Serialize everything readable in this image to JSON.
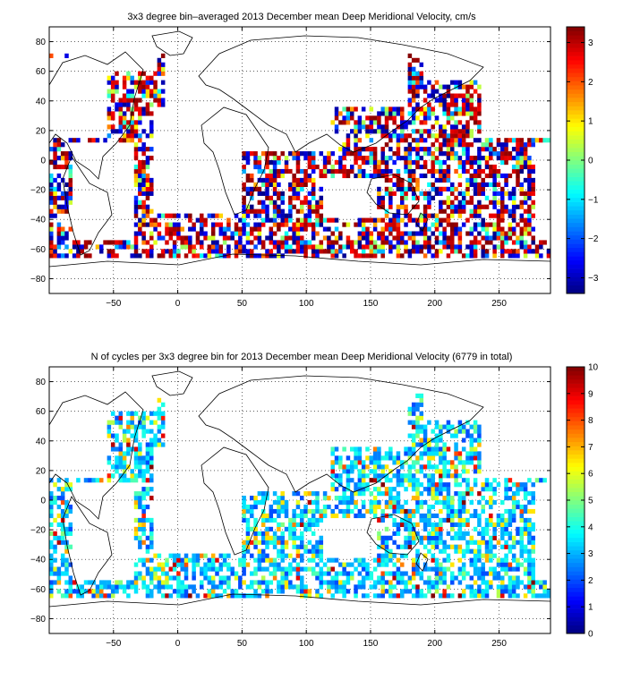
{
  "chart_data": [
    {
      "type": "heatmap",
      "title": "3x3 degree bin–averaged 2013 December mean Deep Meridional Velocity, cm/s",
      "xlabel": "",
      "ylabel": "",
      "xlim": [
        -100,
        290
      ],
      "ylim": [
        -90,
        90
      ],
      "xticks": [
        -50,
        0,
        50,
        100,
        150,
        200,
        250
      ],
      "yticks": [
        -80,
        -60,
        -40,
        -20,
        0,
        20,
        40,
        60,
        80
      ],
      "grid": true,
      "bin_size_deg": 3,
      "colorbar": {
        "range": [
          -3.4,
          3.4
        ],
        "ticks": [
          -3,
          -2,
          -1,
          0,
          1,
          2,
          3
        ],
        "colormap": "jet"
      },
      "seed": 11
    },
    {
      "type": "heatmap",
      "title": "N of cycles per 3x3 degree bin for 2013 December mean Deep Meridional Velocity (6779 in total)",
      "xlabel": "",
      "ylabel": "",
      "xlim": [
        -100,
        290
      ],
      "ylim": [
        -90,
        90
      ],
      "xticks": [
        -50,
        0,
        50,
        100,
        150,
        200,
        250
      ],
      "yticks": [
        -80,
        -60,
        -40,
        -20,
        0,
        20,
        40,
        60,
        80
      ],
      "grid": true,
      "bin_size_deg": 3,
      "colorbar": {
        "range": [
          0,
          10
        ],
        "ticks": [
          0,
          1,
          2,
          3,
          4,
          5,
          6,
          7,
          8,
          9,
          10
        ],
        "colormap": "jet"
      },
      "seed": 29
    }
  ]
}
